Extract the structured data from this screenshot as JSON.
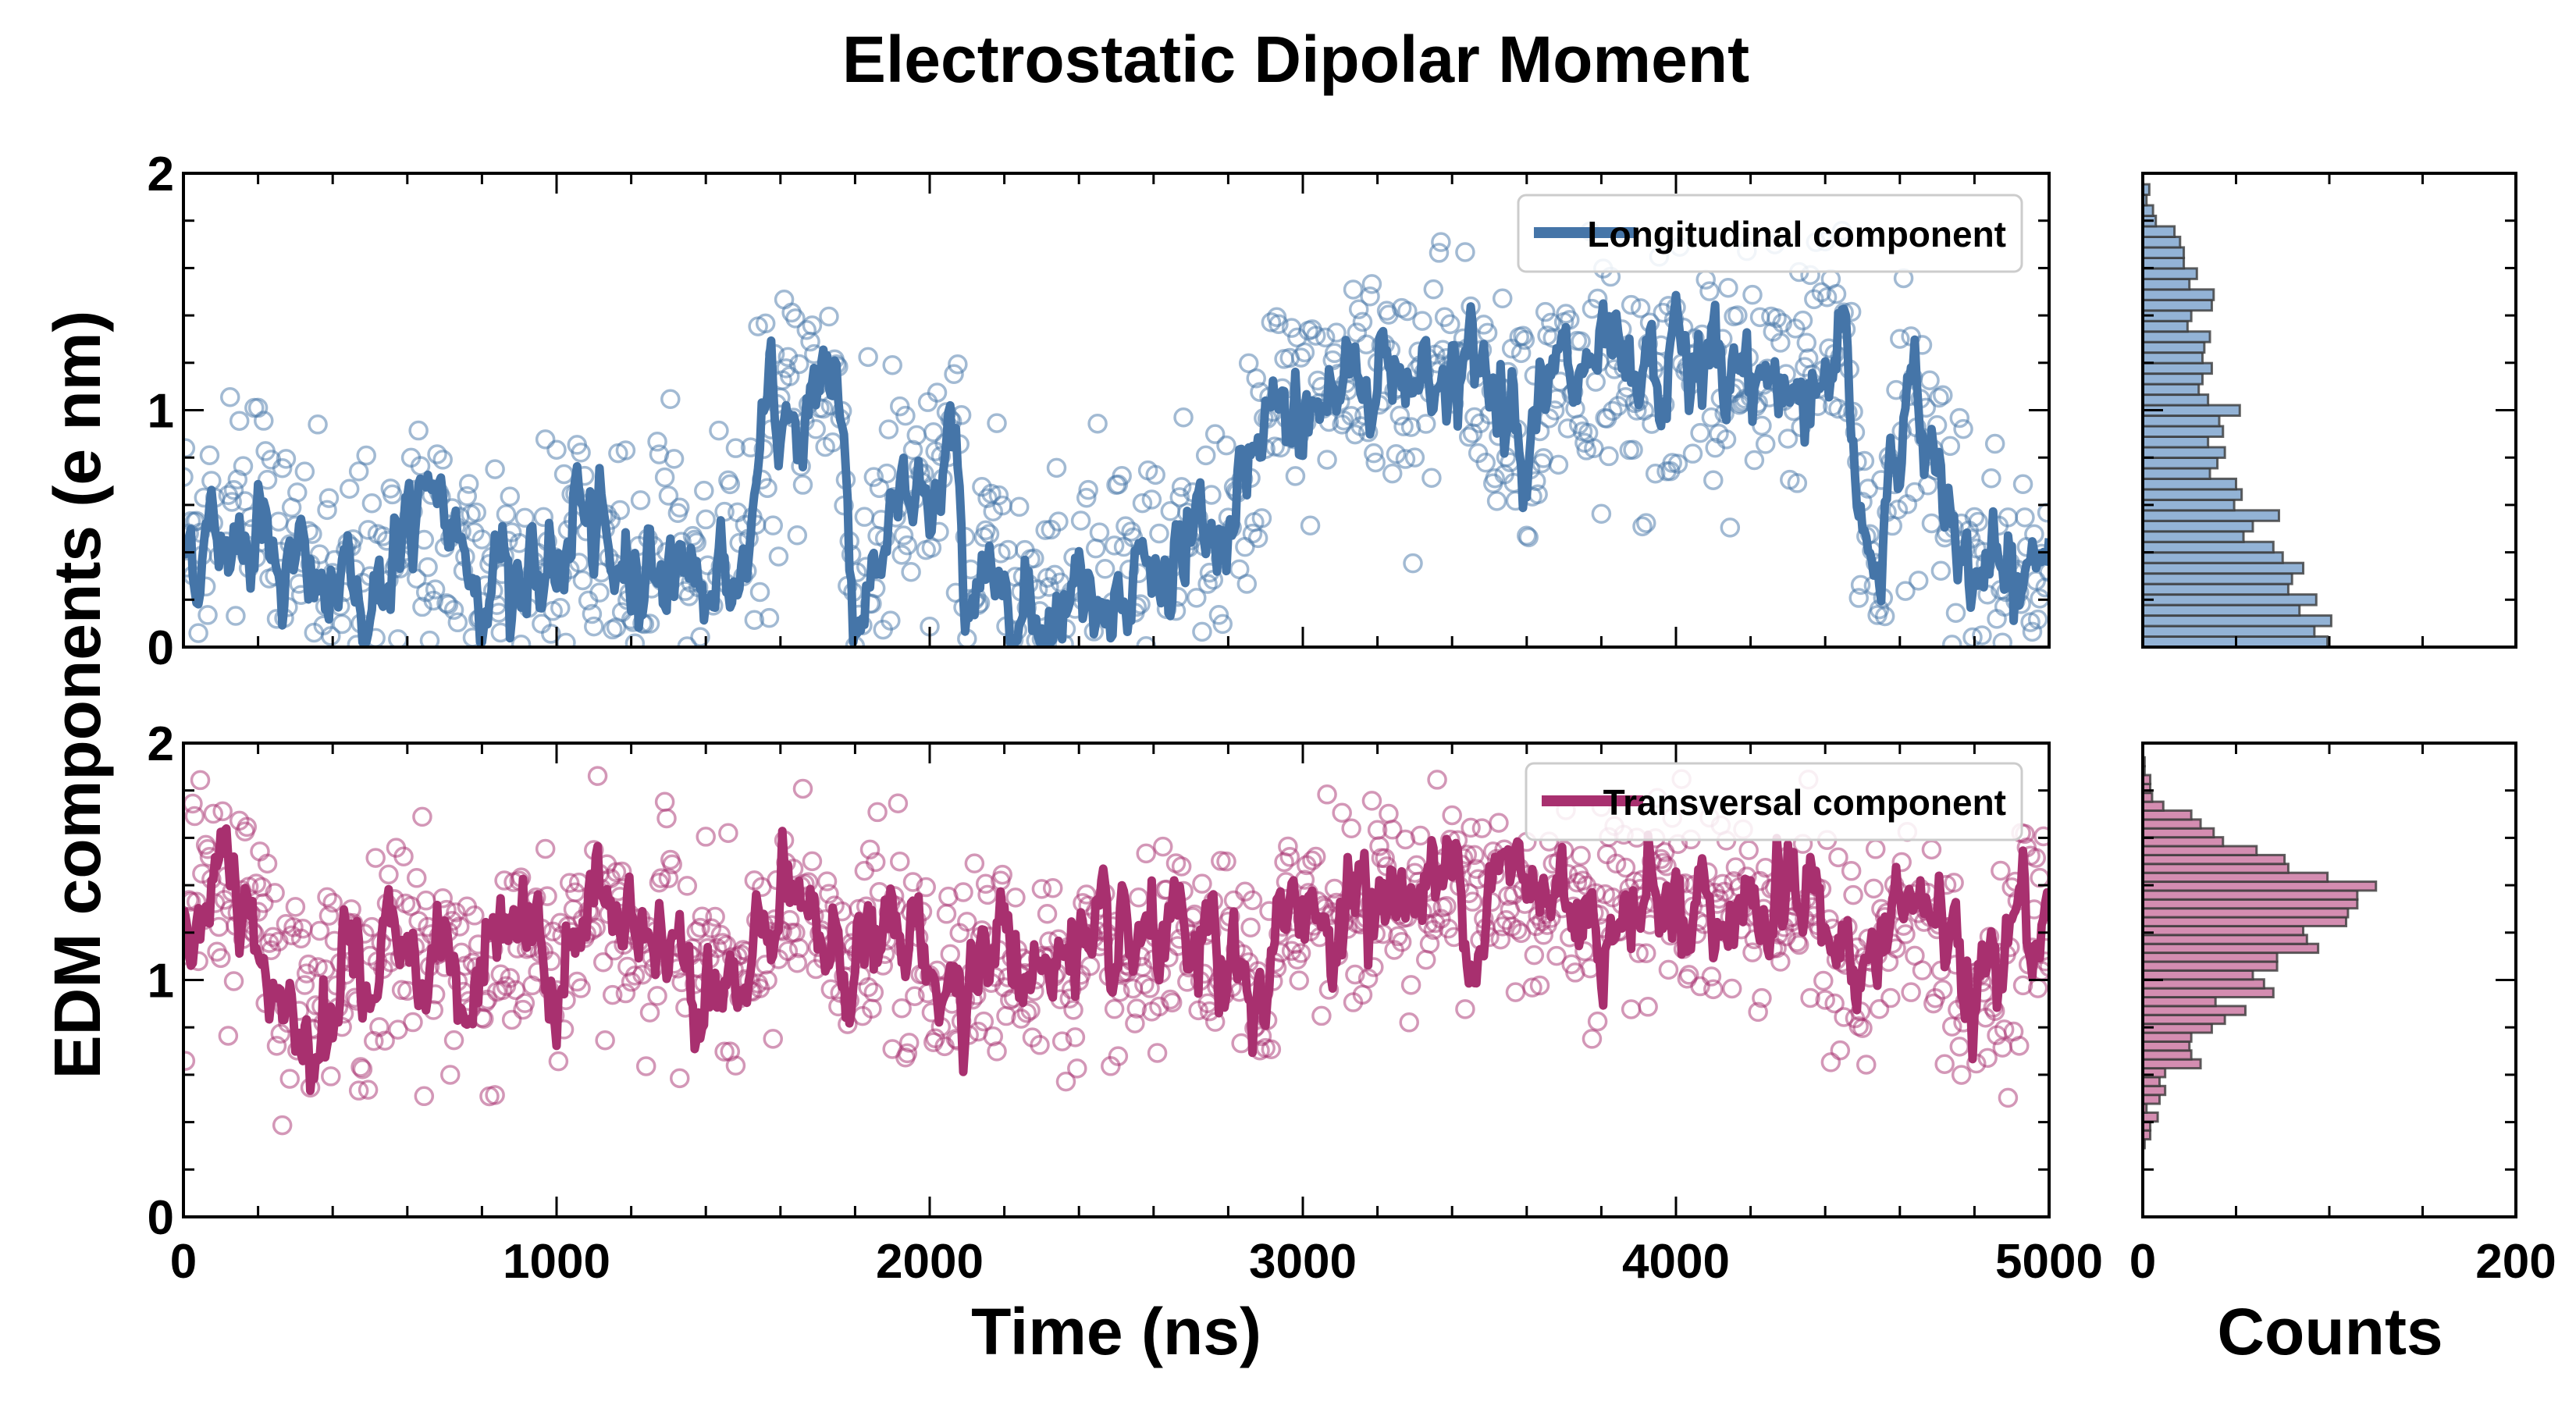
{
  "chart_data": [
    {
      "type": "scatter+line",
      "panel": "top-left",
      "title": "Electrostatic Dipolar Moment",
      "xlabel": "Time (ns)",
      "ylabel": "EDM components (e nm)",
      "xlim": [
        0,
        5000
      ],
      "ylim": [
        0,
        2
      ],
      "xticks": [
        "0",
        "1000",
        "2000",
        "3000",
        "4000",
        "5000"
      ],
      "yticks": [
        "0",
        "1",
        "2"
      ],
      "legend": {
        "label": "Longitudinal component",
        "placement": "top-right"
      },
      "color": "#4575a8",
      "running_average": {
        "x": [
          0,
          100,
          200,
          300,
          400,
          500,
          600,
          700,
          800,
          900,
          1000,
          1050,
          1100,
          1200,
          1300,
          1400,
          1500,
          1550,
          1600,
          1700,
          1750,
          1800,
          1900,
          2000,
          2050,
          2100,
          2200,
          2300,
          2400,
          2500,
          2600,
          2700,
          2800,
          2850,
          2900,
          3000,
          3100,
          3200,
          3300,
          3400,
          3500,
          3600,
          3700,
          3800,
          3900,
          4000,
          4100,
          4200,
          4300,
          4400,
          4450,
          4500,
          4550,
          4600,
          4700,
          4800,
          4900,
          5000
        ],
        "y": [
          0.45,
          0.45,
          0.6,
          0.3,
          0.2,
          0.2,
          0.5,
          0.5,
          0.35,
          0.3,
          0.2,
          0.7,
          0.3,
          0.35,
          0.4,
          0.3,
          0.3,
          0.8,
          0.9,
          1.1,
          1.2,
          0.15,
          0.6,
          0.5,
          0.9,
          0.3,
          0.25,
          0.2,
          0.25,
          0.3,
          0.3,
          0.35,
          0.45,
          0.6,
          0.9,
          1.0,
          1.1,
          1.2,
          1.15,
          1.2,
          1.1,
          1.0,
          1.1,
          1.1,
          1.0,
          1.2,
          1.15,
          1.1,
          1.1,
          1.2,
          1.3,
          0.5,
          0.4,
          1.0,
          0.8,
          0.3,
          0.2,
          0.4
        ]
      },
      "scatter_spread": 0.28
    },
    {
      "type": "scatter+line",
      "panel": "bottom-left",
      "xlim": [
        0,
        5000
      ],
      "ylim": [
        0,
        2
      ],
      "xticks": [
        "0",
        "1000",
        "2000",
        "3000",
        "4000",
        "5000"
      ],
      "yticks": [
        "0",
        "1",
        "2"
      ],
      "legend": {
        "label": "Transversal component",
        "placement": "top-right"
      },
      "color": "#a8306f",
      "running_average": {
        "x": [
          0,
          100,
          200,
          300,
          400,
          500,
          600,
          700,
          800,
          900,
          1000,
          1100,
          1200,
          1300,
          1400,
          1500,
          1600,
          1700,
          1800,
          1900,
          2000,
          2100,
          2200,
          2300,
          2400,
          2500,
          2600,
          2700,
          2800,
          2900,
          3000,
          3100,
          3200,
          3300,
          3400,
          3500,
          3600,
          3700,
          3800,
          3900,
          4000,
          4100,
          4200,
          4300,
          4400,
          4500,
          4600,
          4700,
          4800,
          4900,
          5000
        ],
        "y": [
          1.35,
          1.35,
          1.3,
          0.85,
          1.05,
          1.0,
          1.2,
          1.1,
          0.95,
          1.2,
          1.0,
          1.3,
          1.2,
          1.15,
          1.1,
          0.9,
          1.3,
          1.2,
          1.1,
          1.2,
          1.0,
          1.1,
          1.1,
          1.05,
          1.1,
          1.0,
          1.1,
          1.1,
          1.05,
          0.95,
          1.35,
          1.3,
          1.35,
          1.35,
          1.4,
          1.4,
          1.35,
          1.35,
          1.3,
          1.35,
          1.4,
          1.3,
          1.35,
          1.3,
          1.3,
          0.95,
          1.3,
          1.25,
          0.85,
          1.2,
          1.25
        ]
      },
      "scatter_spread": 0.22
    },
    {
      "type": "bar",
      "orientation": "horizontal",
      "panel": "top-right",
      "xlabel": "Counts",
      "xlim": [
        0,
        200
      ],
      "xticks": [
        "0",
        "200"
      ],
      "ylim": [
        0,
        2
      ],
      "bin_start": 0,
      "bin_width": 0.0444,
      "counts": [
        99,
        92,
        101,
        84,
        93,
        78,
        80,
        86,
        75,
        70,
        54,
        59,
        73,
        49,
        53,
        50,
        36,
        40,
        44,
        35,
        43,
        41,
        52,
        35,
        30,
        32,
        37,
        32,
        33,
        36,
        24,
        26,
        37,
        38,
        25,
        29,
        22,
        22,
        20,
        17,
        7,
        5.5,
        2,
        3.5,
        0
      ],
      "color": "#93b3d6"
    },
    {
      "type": "bar",
      "orientation": "horizontal",
      "panel": "bottom-right",
      "xlabel": "Counts",
      "xlim": [
        0,
        200
      ],
      "xticks": [
        "0",
        "200"
      ],
      "ylim": [
        0,
        2
      ],
      "bin_start": 0.29,
      "bin_width": 0.0375,
      "counts": [
        1,
        4,
        4,
        8,
        2,
        9,
        12,
        9,
        12,
        31,
        26,
        25,
        26,
        37,
        44,
        55,
        39,
        70,
        65,
        59,
        72,
        72,
        94,
        88,
        86,
        109,
        110,
        115,
        115,
        125,
        99,
        78,
        76,
        61,
        43,
        38,
        31,
        26,
        11,
        5,
        4,
        4,
        1,
        1
      ],
      "color": "#d48db1"
    }
  ]
}
